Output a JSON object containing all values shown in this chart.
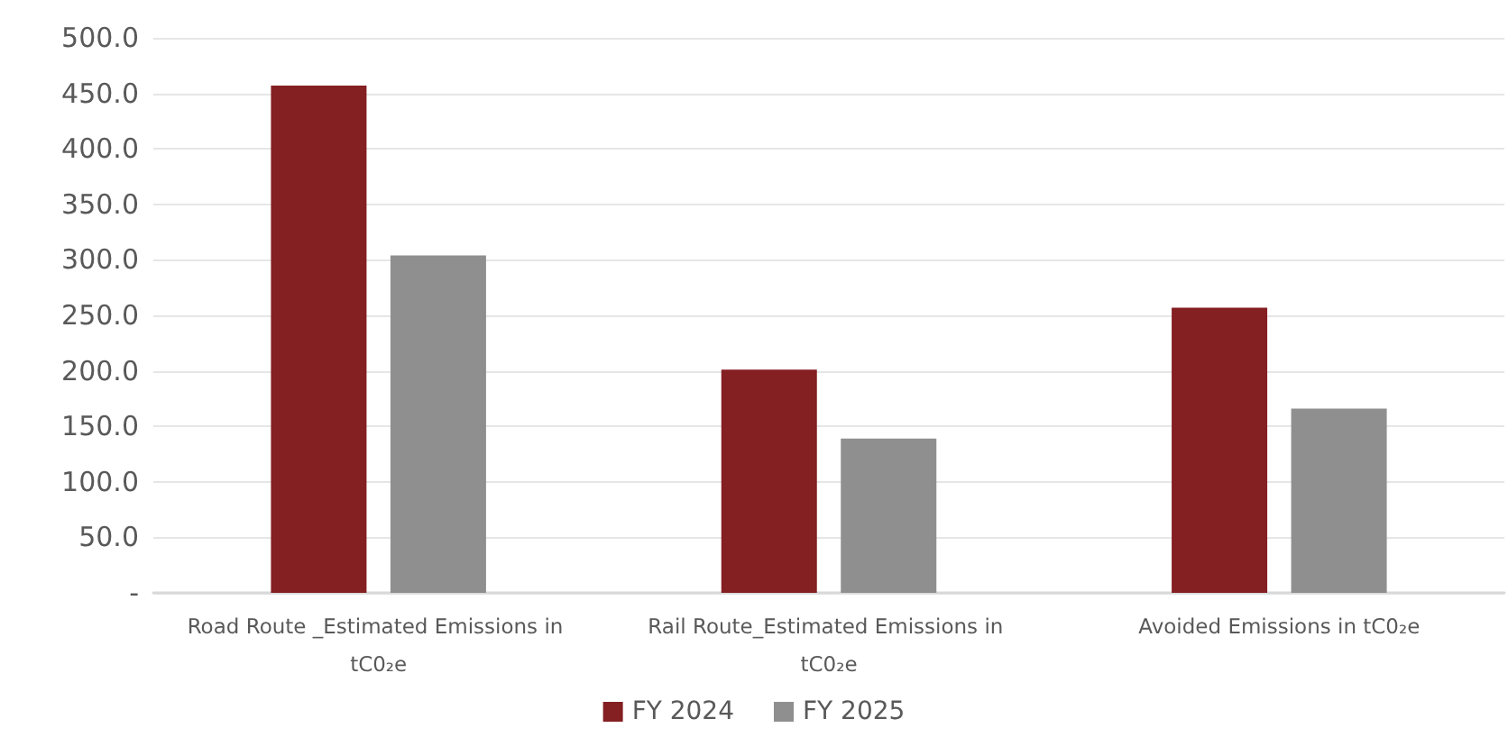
{
  "chart_data": {
    "type": "bar",
    "categories": [
      "Road Route _Estimated Emissions in tC0₂e",
      "Rail Route_Estimated Emissions in tC0₂e",
      "Avoided Emissions in tC0₂e"
    ],
    "series": [
      {
        "name": "FY 2024",
        "color": "#841f22",
        "values": [
          457,
          201,
          257
        ]
      },
      {
        "name": "FY 2025",
        "color": "#8f8f8f",
        "values": [
          304,
          139,
          166
        ]
      }
    ],
    "ylim": [
      0,
      500
    ],
    "yticks": [
      {
        "value": 0,
        "label": "-"
      },
      {
        "value": 50,
        "label": "50.0"
      },
      {
        "value": 100,
        "label": "100.0"
      },
      {
        "value": 150,
        "label": "150.0"
      },
      {
        "value": 200,
        "label": "200.0"
      },
      {
        "value": 250,
        "label": "250.0"
      },
      {
        "value": 300,
        "label": "300.0"
      },
      {
        "value": 350,
        "label": "350.0"
      },
      {
        "value": 400,
        "label": "400.0"
      },
      {
        "value": 450,
        "label": "450.0"
      },
      {
        "value": 500,
        "label": "500.0"
      }
    ],
    "grid": "y",
    "legend": "bottom"
  }
}
